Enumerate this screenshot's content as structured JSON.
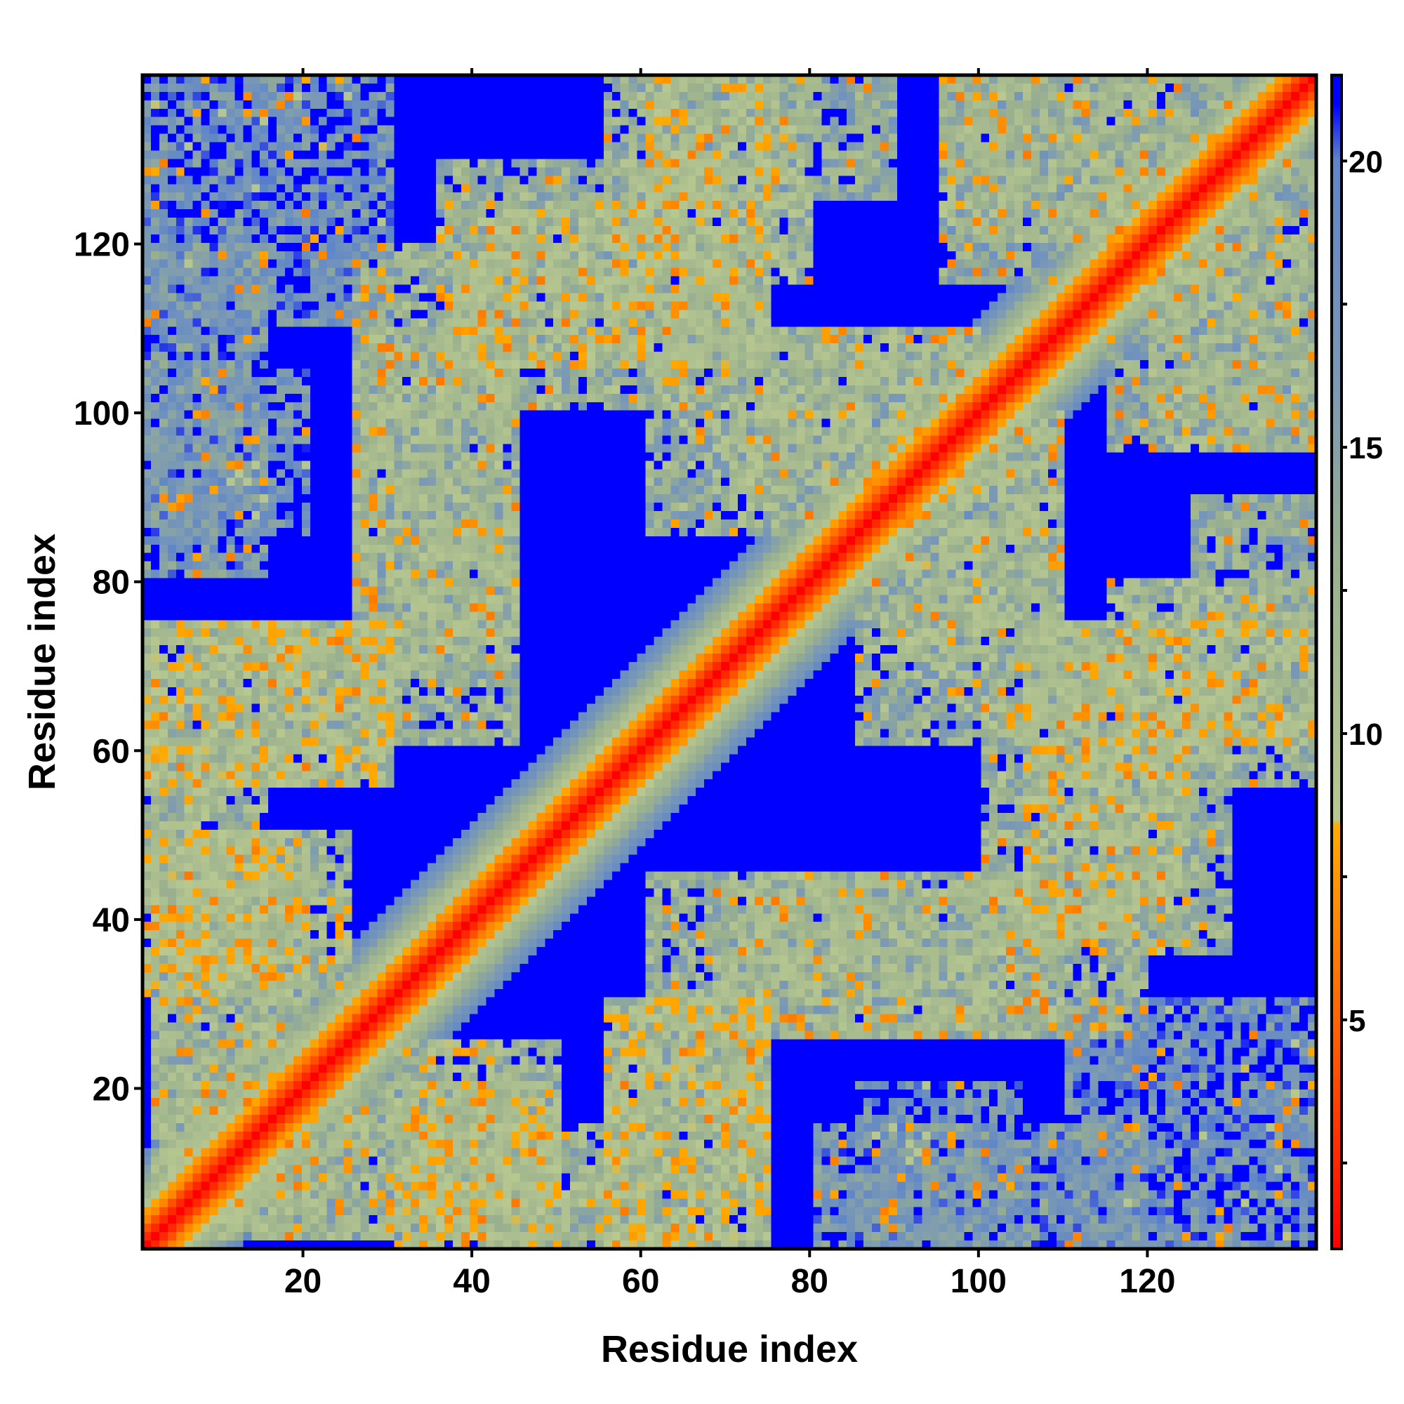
{
  "chart_data": {
    "type": "heatmap",
    "title": "",
    "xlabel": "Residue index",
    "ylabel": "Residue index",
    "n_residues": 140,
    "xlim": [
      1,
      140
    ],
    "ylim": [
      1,
      140
    ],
    "x_ticks": [
      20,
      40,
      60,
      80,
      100,
      120
    ],
    "y_ticks": [
      20,
      40,
      60,
      80,
      100,
      120
    ],
    "colorbar": {
      "range": [
        1,
        21.5
      ],
      "ticks": [
        5,
        10,
        15,
        20
      ],
      "stops": [
        {
          "value": 1,
          "color": "#ff0000"
        },
        {
          "value": 4.5,
          "color": "#ff5a00"
        },
        {
          "value": 8.4,
          "color": "#ffaa00"
        },
        {
          "value": 8.5,
          "color": "#b8c890"
        },
        {
          "value": 13,
          "color": "#9ab08e"
        },
        {
          "value": 16,
          "color": "#7c9ab4"
        },
        {
          "value": 20,
          "color": "#5f86c8"
        },
        {
          "value": 21,
          "color": "#0000ff"
        }
      ]
    },
    "background_color": "#0000ff",
    "description_values": {
      "diagonal_distance": 3.8,
      "near_diagonal_band_width": 6,
      "cutoff_distance": 20
    },
    "blocks": [
      {
        "x": [
          1,
          20
        ],
        "y": [
          1,
          20
        ],
        "level": 13
      },
      {
        "x": [
          1,
          50
        ],
        "y": [
          1,
          20
        ],
        "level": 14
      },
      {
        "x": [
          20,
          50
        ],
        "y": [
          1,
          20
        ],
        "level": 13
      },
      {
        "x": [
          30,
          60
        ],
        "y": [
          0,
          15
        ],
        "level": 12
      },
      {
        "x": [
          55,
          75
        ],
        "y": [
          0,
          30
        ],
        "level": 12
      },
      {
        "x": [
          60,
          120
        ],
        "y": [
          25,
          45
        ],
        "level": 13
      },
      {
        "x": [
          100,
          130
        ],
        "y": [
          35,
          65
        ],
        "level": 13
      },
      {
        "x": [
          110,
          140
        ],
        "y": [
          55,
          75
        ],
        "level": 13
      },
      {
        "x": [
          125,
          140
        ],
        "y": [
          60,
          90
        ],
        "level": 14
      },
      {
        "x": [
          0,
          25
        ],
        "y": [
          30,
          50
        ],
        "level": 12
      },
      {
        "x": [
          0,
          30
        ],
        "y": [
          55,
          75
        ],
        "level": 12
      },
      {
        "x": [
          25,
          45
        ],
        "y": [
          70,
          95
        ],
        "level": 13
      },
      {
        "x": [
          25,
          45
        ],
        "y": [
          95,
          110
        ],
        "level": 13
      },
      {
        "x": [
          35,
          75
        ],
        "y": [
          105,
          125
        ],
        "level": 12
      },
      {
        "x": [
          60,
          80
        ],
        "y": [
          115,
          140
        ],
        "level": 12
      },
      {
        "x": [
          70,
          100
        ],
        "y": [
          90,
          110
        ],
        "level": 13
      },
      {
        "x": [
          85,
          110
        ],
        "y": [
          60,
          100
        ],
        "level": 13
      },
      {
        "x": [
          95,
          125
        ],
        "y": [
          120,
          140
        ],
        "level": 13
      },
      {
        "x": [
          115,
          140
        ],
        "y": [
          95,
          130
        ],
        "level": 14
      },
      {
        "x": [
          0,
          15
        ],
        "y": [
          80,
          120
        ],
        "level": 17
      },
      {
        "x": [
          85,
          105
        ],
        "y": [
          0,
          20
        ],
        "level": 18
      },
      {
        "x": [
          110,
          140
        ],
        "y": [
          0,
          30
        ],
        "level": 18
      }
    ]
  }
}
